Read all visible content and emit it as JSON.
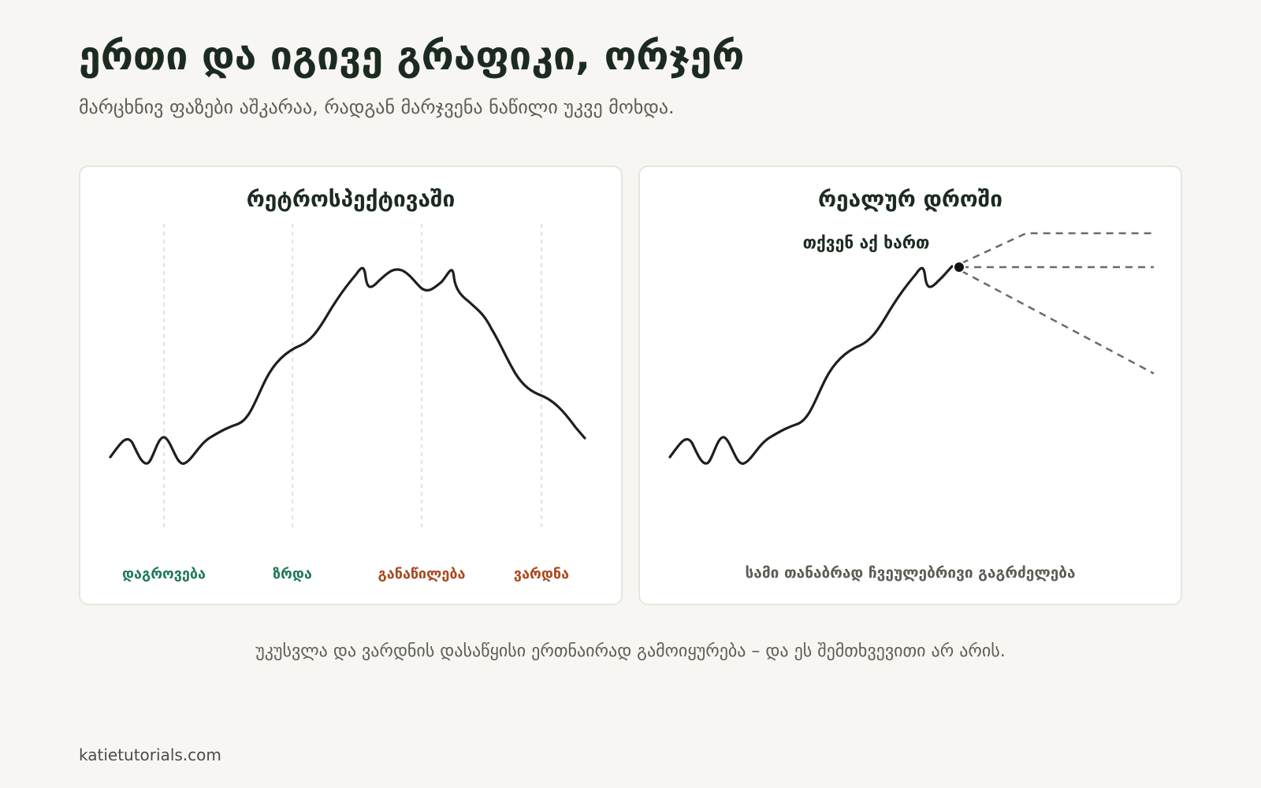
{
  "header": {
    "title": "ერთი და იგივე გრაფიკი, ორჯერ",
    "subtitle": "მარცხნივ ფაზები აშკარაა, რადგან მარჯვენა ნაწილი უკვე მოხდა."
  },
  "left_panel": {
    "title": "რეტროსპექტივაში",
    "phases": [
      {
        "label": "დაგროვება",
        "color": "#1f7a56"
      },
      {
        "label": "ზრდა",
        "color": "#1f7a56"
      },
      {
        "label": "განაწილება",
        "color": "#a84a1e"
      },
      {
        "label": "ვარდნა",
        "color": "#a84a1e"
      }
    ]
  },
  "right_panel": {
    "title": "რეალურ დროში",
    "marker_label": "თქვენ აქ ხართ",
    "caption": "სამი თანაბრად ჩვეულებრივი გაგრძელება"
  },
  "footnote": "უკუსვლა და ვარდნის დასაწყისი ერთნაირად გამოიყურება – და ეს შემთხვევითი არ არის.",
  "credit": "katietutorials.com",
  "colors": {
    "line": "#1b211d",
    "dashed": "#6b6a64",
    "grid": "#d9d8d3",
    "green": "#1f7a56",
    "rust": "#a84a1e"
  }
}
